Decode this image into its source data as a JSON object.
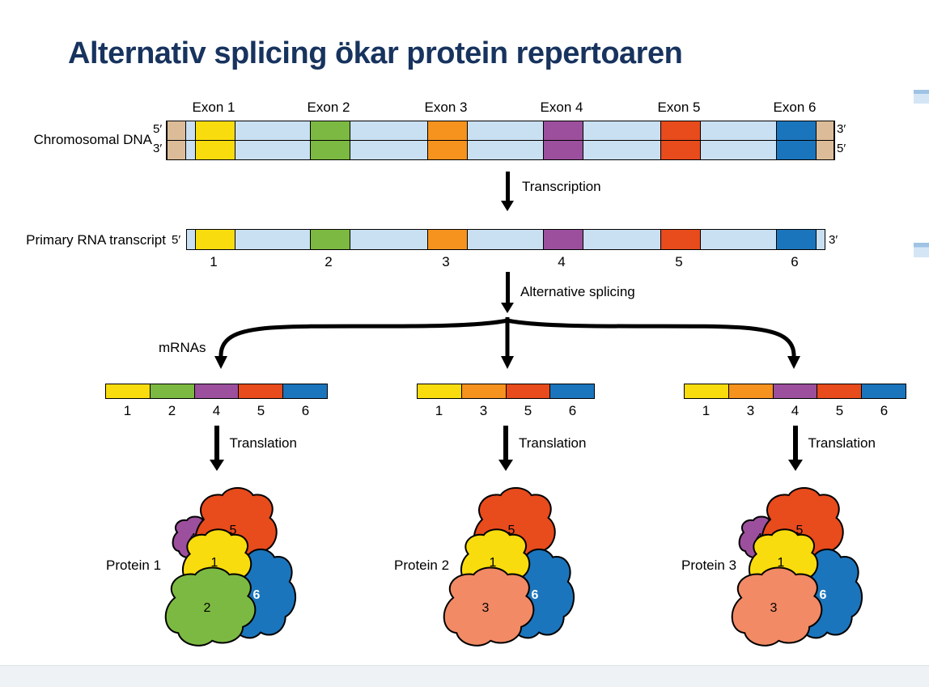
{
  "title": "Alternativ splicing ökar protein repertoaren",
  "colors": {
    "yellow": "#F9DC0D",
    "green": "#7CB942",
    "orange": "#F6921E",
    "purple": "#9C4F9C",
    "red": "#E84B1C",
    "blue": "#1B75BC",
    "salmon": "#F18A65",
    "intron": "#C9DFF2",
    "cap": "#DCBC98",
    "title": "#17335E"
  },
  "dna": {
    "label": "Chromosomal DNA",
    "left_top": "5′",
    "left_bottom": "3′",
    "right_top": "3′",
    "right_bottom": "5′",
    "exon_labels": [
      "Exon 1",
      "Exon 2",
      "Exon 3",
      "Exon 4",
      "Exon 5",
      "Exon 6"
    ],
    "exon_colors": [
      "yellow",
      "green",
      "orange",
      "purple",
      "red",
      "blue"
    ]
  },
  "steps": {
    "transcription": "Transcription",
    "alternative_splicing": "Alternative splicing",
    "translation": "Translation"
  },
  "rna": {
    "label": "Primary RNA transcript",
    "left": "5′",
    "right": "3′",
    "exon_numbers": [
      "1",
      "2",
      "3",
      "4",
      "5",
      "6"
    ]
  },
  "mrnas_label": "mRNAs",
  "exon_colors": {
    "1": "yellow",
    "2": "green",
    "3": "orange",
    "4": "purple",
    "5": "red",
    "6": "blue"
  },
  "protein_subunit_colors": {
    "1": "yellow",
    "2": "green",
    "3": "salmon",
    "4": "purple",
    "5": "red",
    "6": "blue"
  },
  "mrnas": [
    {
      "exons": [
        "1",
        "2",
        "4",
        "5",
        "6"
      ]
    },
    {
      "exons": [
        "1",
        "3",
        "5",
        "6"
      ]
    },
    {
      "exons": [
        "1",
        "3",
        "4",
        "5",
        "6"
      ]
    }
  ],
  "proteins": [
    {
      "label": "Protein 1",
      "subunits": [
        "1",
        "2",
        "4",
        "5",
        "6"
      ]
    },
    {
      "label": "Protein 2",
      "subunits": [
        "1",
        "3",
        "5",
        "6"
      ]
    },
    {
      "label": "Protein 3",
      "subunits": [
        "1",
        "3",
        "4",
        "5",
        "6"
      ]
    }
  ]
}
